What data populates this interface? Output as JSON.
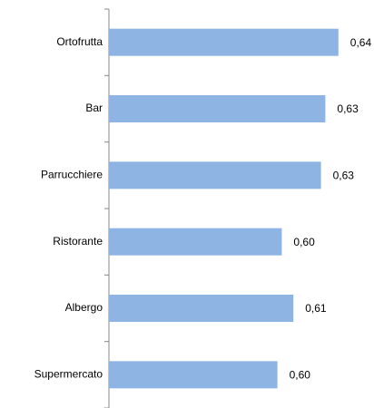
{
  "chart_data": {
    "type": "hbar",
    "categories": [
      "Ortofrutta",
      "Bar",
      "Parrucchiere",
      "Ristorante",
      "Albergo",
      "Supermercato"
    ],
    "values": [
      0.638,
      0.629,
      0.626,
      0.599,
      0.607,
      0.596
    ],
    "value_labels": [
      "0,64",
      "0,63",
      "0,63",
      "0,60",
      "0,61",
      "0,60"
    ],
    "color": "#8eb4e3",
    "xlim": [
      0.48,
      0.66
    ]
  }
}
